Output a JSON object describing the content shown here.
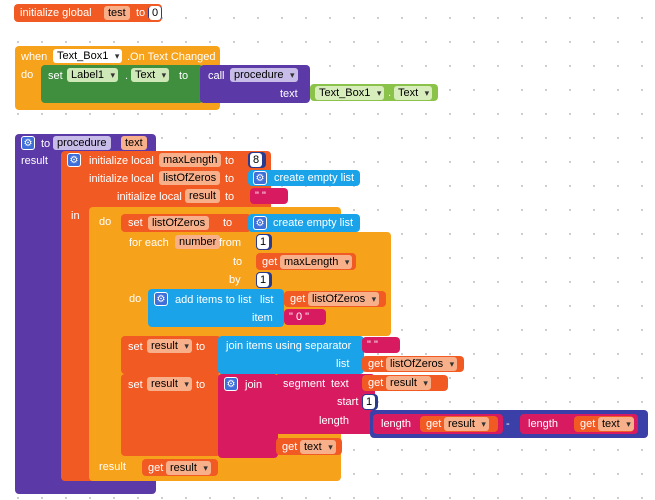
{
  "global_var": {
    "label": "initialize global",
    "name": "test",
    "to": "to",
    "value": "0"
  },
  "event": {
    "when": "when",
    "component": "Text_Box1",
    "event": ".On Text Changed",
    "do": "do",
    "set": "set",
    "target": "Label1",
    "prop": "Text",
    "to": "to",
    "call": "call",
    "proc": "procedure",
    "arg": "text",
    "arg_component": "Text_Box1",
    "arg_prop": "Text",
    "dot": "."
  },
  "proc": {
    "to": "to",
    "name": "procedure",
    "param": "text",
    "result": "result",
    "init_local": "initialize local",
    "v_max": "maxLength",
    "max_val": "8",
    "v_zeros": "listOfZeros",
    "create_list": "create empty list",
    "v_result": "result",
    "empty_text": "\" \"",
    "in": "in",
    "do": "do",
    "set": "set",
    "to_kw": "to",
    "for_each": "for each",
    "var_number": "number",
    "from": "from",
    "from_val": "1",
    "to_lbl": "to",
    "get": "get",
    "by": "by",
    "by_val": "1",
    "add_items": "add items to list",
    "list_kw": "list",
    "item_kw": "item",
    "zero_text": "\" 0 \"",
    "join_sep": "join items using separator",
    "sep_text": "\" \"",
    "join": "join",
    "segment": "segment",
    "text_kw": "text",
    "start": "start",
    "start_val": "1",
    "length": "length",
    "minus": "-",
    "result_kw": "result"
  }
}
